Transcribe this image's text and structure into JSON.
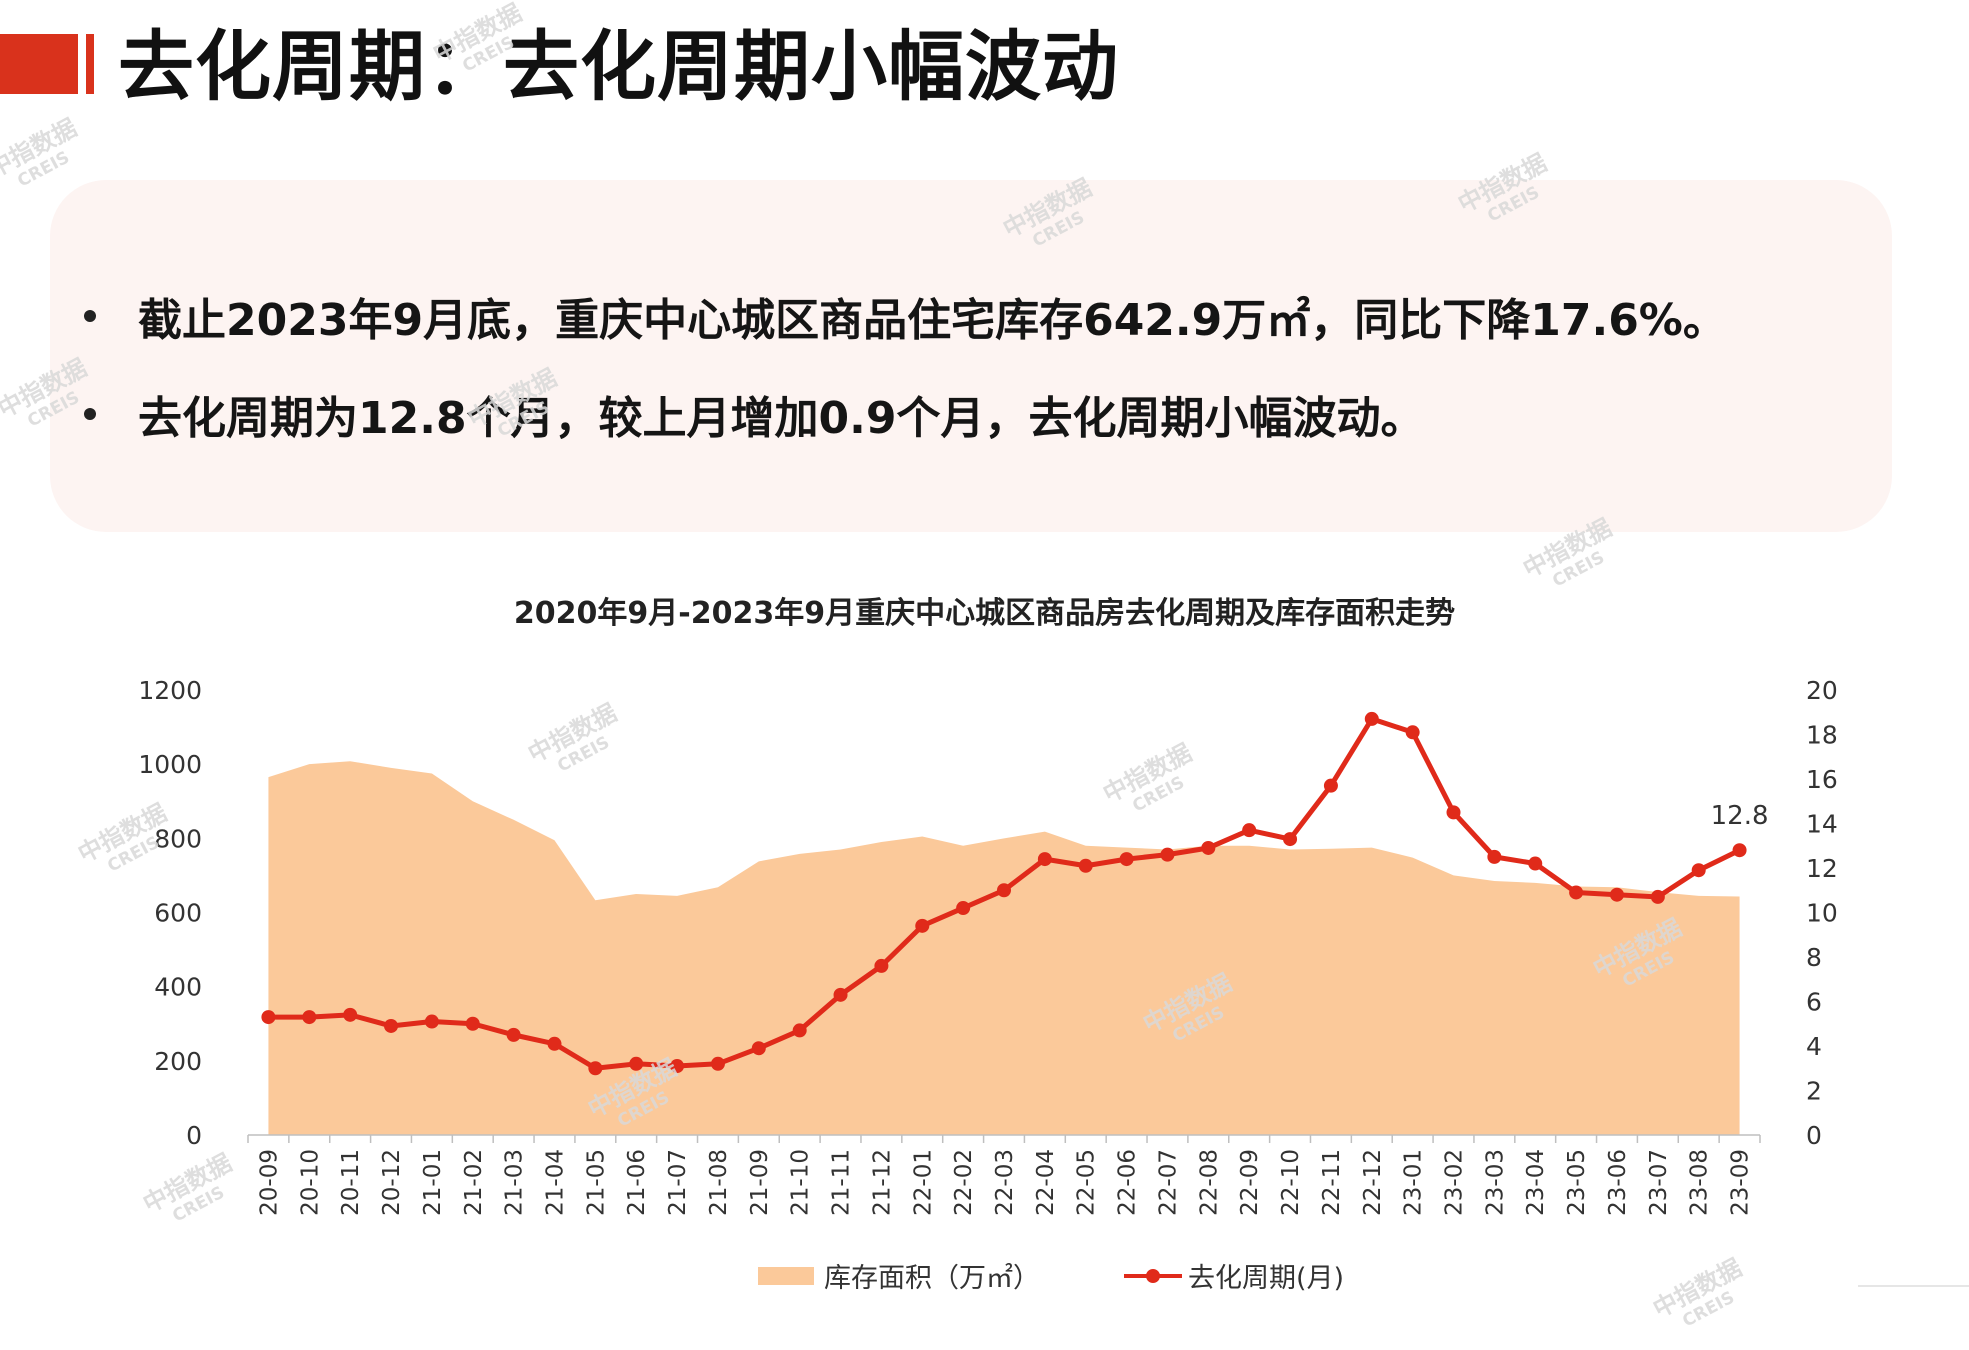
{
  "header": {
    "title": "去化周期：去化周期小幅波动"
  },
  "summary": {
    "bullets": [
      "截止2023年9月底，重庆中心城区商品住宅库存642.9万㎡，同比下降17.6%。",
      "去化周期为12.8个月，较上月增加0.9个月，去化周期小幅波动。"
    ]
  },
  "watermark": {
    "text": "中指数据",
    "sub": "CREIS"
  },
  "colors": {
    "accent": "#d9321c",
    "area": "#fbc99a",
    "line": "#e02a1a",
    "box_bg": "#fdf4f2"
  },
  "chart_data": {
    "type": "area+line",
    "title": "2020年9月-2023年9月重庆中心城区商品房去化周期及库存面积走势",
    "categories": [
      "20-09",
      "20-10",
      "20-11",
      "20-12",
      "21-01",
      "21-02",
      "21-03",
      "21-04",
      "21-05",
      "21-06",
      "21-07",
      "21-08",
      "21-09",
      "21-10",
      "21-11",
      "21-12",
      "22-01",
      "22-02",
      "22-03",
      "22-04",
      "22-05",
      "22-06",
      "22-07",
      "22-08",
      "22-09",
      "22-10",
      "22-11",
      "22-12",
      "23-01",
      "23-02",
      "23-03",
      "23-04",
      "23-05",
      "23-06",
      "23-07",
      "23-08",
      "23-09"
    ],
    "y_left": {
      "min": 0,
      "max": 1200,
      "ticks": [
        0,
        200,
        400,
        600,
        800,
        1000,
        1200
      ]
    },
    "y_right": {
      "min": 0,
      "max": 20,
      "ticks": [
        0,
        2,
        4,
        6,
        8,
        10,
        12,
        14,
        16,
        18,
        20
      ]
    },
    "series": [
      {
        "name": "库存面积（万㎡）",
        "type": "area",
        "axis": "left",
        "values": [
          965,
          1000,
          1008,
          990,
          975,
          900,
          850,
          795,
          633,
          650,
          645,
          668,
          738,
          758,
          770,
          790,
          805,
          780,
          800,
          818,
          780,
          775,
          770,
          780,
          780,
          770,
          772,
          775,
          748,
          700,
          685,
          680,
          670,
          668,
          655,
          645,
          643
        ]
      },
      {
        "name": "去化周期(月)",
        "type": "line",
        "axis": "right",
        "values": [
          5.3,
          5.3,
          5.4,
          4.9,
          5.1,
          5.0,
          4.5,
          4.1,
          3.0,
          3.2,
          3.1,
          3.2,
          3.9,
          4.7,
          6.3,
          7.6,
          9.4,
          10.2,
          11.0,
          12.4,
          12.1,
          12.4,
          12.6,
          12.9,
          13.7,
          13.3,
          15.7,
          18.7,
          18.1,
          14.5,
          12.5,
          12.2,
          10.9,
          10.8,
          10.7,
          11.9,
          12.8
        ]
      }
    ],
    "annotations": [
      {
        "label": "12.8"
      }
    ],
    "grid": false,
    "legend_position": "bottom"
  }
}
